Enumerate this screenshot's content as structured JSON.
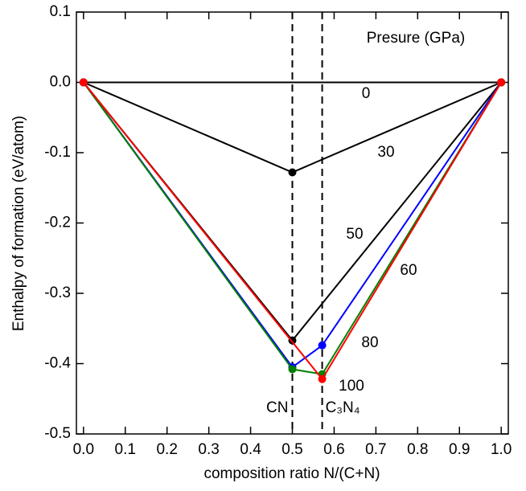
{
  "chart_data": {
    "type": "line",
    "annotation": "Presure (GPa)",
    "xlabel": "composition ratio N/(C+N)",
    "ylabel": "Enthalpy of formation (eV/atom)",
    "xlim": [
      -0.017,
      1.017
    ],
    "ylim": [
      -0.5,
      0.1
    ],
    "xticks": [
      {
        "value": 0,
        "label": "0.0"
      },
      {
        "value": 0.1,
        "label": "0.1"
      },
      {
        "value": 0.2,
        "label": "0.2"
      },
      {
        "value": 0.3,
        "label": "0.3"
      },
      {
        "value": 0.4,
        "label": "0.4"
      },
      {
        "value": 0.5,
        "label": "0.5"
      },
      {
        "value": 0.6,
        "label": "0.6"
      },
      {
        "value": 0.7,
        "label": "0.7"
      },
      {
        "value": 0.8,
        "label": "0.8"
      },
      {
        "value": 0.9,
        "label": "0.9"
      },
      {
        "value": 1,
        "label": "1.0"
      }
    ],
    "yticks": [
      {
        "value": 0.1,
        "label": "0.1"
      },
      {
        "value": 0,
        "label": "0.0"
      },
      {
        "value": -0.1,
        "label": "-0.1"
      },
      {
        "value": -0.2,
        "label": "-0.2"
      },
      {
        "value": -0.3,
        "label": "-0.3"
      },
      {
        "value": -0.4,
        "label": "-0.4"
      },
      {
        "value": -0.5,
        "label": "-0.5"
      }
    ],
    "vlines": [
      {
        "x": 0.5,
        "label": "CN"
      },
      {
        "x": 0.5714,
        "label": "C₃N₄"
      }
    ],
    "series": [
      {
        "name": "0",
        "color": "#000000",
        "x": [
          0,
          1
        ],
        "values": [
          0,
          0
        ]
      },
      {
        "name": "30",
        "color": "#000000",
        "x": [
          0,
          0.5,
          1
        ],
        "values": [
          0,
          -0.128,
          0
        ]
      },
      {
        "name": "50",
        "color": "#000000",
        "x": [
          0,
          0.5,
          1
        ],
        "values": [
          0,
          -0.367,
          0
        ]
      },
      {
        "name": "60",
        "color": "#0000ff",
        "x": [
          0,
          0.5,
          0.5714,
          1
        ],
        "values": [
          0,
          -0.405,
          -0.374,
          0
        ]
      },
      {
        "name": "80",
        "color": "#008000",
        "x": [
          0,
          0.5,
          0.5714,
          1
        ],
        "values": [
          0,
          -0.408,
          -0.415,
          0
        ]
      },
      {
        "name": "100",
        "color": "#ff0000",
        "x": [
          0,
          0.5714,
          1
        ],
        "values": [
          0,
          -0.422,
          0
        ]
      }
    ]
  }
}
